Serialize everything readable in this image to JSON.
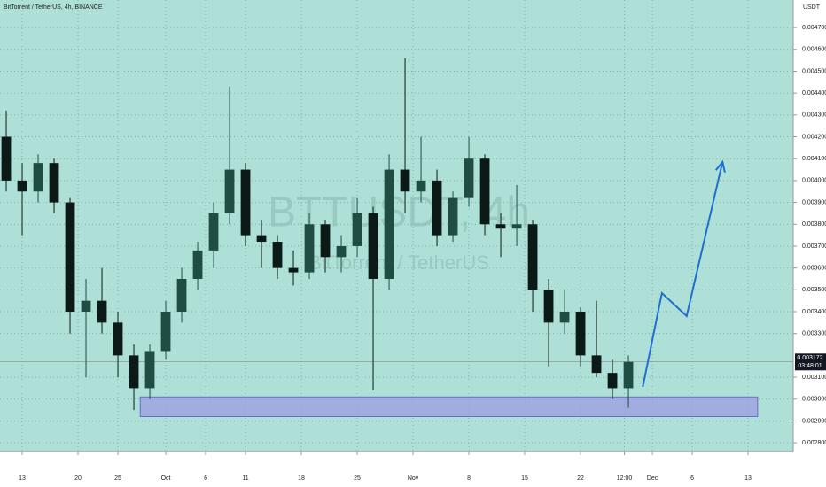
{
  "chart_data": {
    "type": "candlestick",
    "title": "BitTorrent / TetherUS, 4h, BINANCE",
    "watermark": "BTTUSDT, 4h",
    "watermark_sub": "BitTorrent / TetherUS",
    "y_unit": "USDT",
    "x": [
      -2,
      0,
      2,
      4,
      6,
      8,
      10,
      12,
      14,
      16,
      18,
      20,
      22,
      24,
      26,
      28,
      30,
      32,
      34,
      36,
      38,
      40,
      42,
      44,
      46,
      48,
      50,
      52,
      54,
      56,
      58,
      60,
      62,
      64,
      66,
      68,
      70,
      72,
      74,
      76
    ],
    "open": [
      0.0042,
      0.004,
      0.00395,
      0.00408,
      0.0039,
      0.0034,
      0.00345,
      0.00335,
      0.0032,
      0.00305,
      0.00322,
      0.0034,
      0.00355,
      0.00368,
      0.00385,
      0.00405,
      0.00375,
      0.00372,
      0.0036,
      0.00358,
      0.0038,
      0.00365,
      0.0037,
      0.00385,
      0.00355,
      0.00405,
      0.00395,
      0.004,
      0.00375,
      0.00392,
      0.0041,
      0.0038,
      0.00378,
      0.0038,
      0.0035,
      0.00335,
      0.0034,
      0.0032,
      0.00312,
      0.00305
    ],
    "high": [
      0.00432,
      0.00408,
      0.00412,
      0.0041,
      0.00392,
      0.00355,
      0.0036,
      0.0034,
      0.00325,
      0.00325,
      0.00345,
      0.0036,
      0.00372,
      0.0039,
      0.00443,
      0.00408,
      0.00382,
      0.00375,
      0.00368,
      0.00385,
      0.00382,
      0.00375,
      0.00392,
      0.00388,
      0.00412,
      0.00456,
      0.0042,
      0.00405,
      0.00395,
      0.0042,
      0.00412,
      0.00385,
      0.00398,
      0.00382,
      0.00355,
      0.0035,
      0.00342,
      0.00345,
      0.00318,
      0.0032
    ],
    "low": [
      0.00395,
      0.00375,
      0.0039,
      0.00385,
      0.0033,
      0.0031,
      0.0033,
      0.0031,
      0.00295,
      0.003,
      0.00318,
      0.00335,
      0.0035,
      0.0036,
      0.0038,
      0.0037,
      0.0036,
      0.00355,
      0.00352,
      0.00355,
      0.00358,
      0.00358,
      0.00365,
      0.00304,
      0.0035,
      0.00385,
      0.0039,
      0.0037,
      0.00372,
      0.00388,
      0.00375,
      0.00365,
      0.0037,
      0.0034,
      0.00315,
      0.0033,
      0.00315,
      0.0031,
      0.003,
      0.00296
    ],
    "close": [
      0.004,
      0.00395,
      0.00408,
      0.0039,
      0.0034,
      0.00345,
      0.00335,
      0.0032,
      0.00305,
      0.00322,
      0.0034,
      0.00355,
      0.00368,
      0.00385,
      0.00405,
      0.00375,
      0.00372,
      0.0036,
      0.00358,
      0.0038,
      0.00365,
      0.0037,
      0.00385,
      0.00355,
      0.00405,
      0.00395,
      0.004,
      0.00375,
      0.00392,
      0.0041,
      0.0038,
      0.00378,
      0.0038,
      0.0035,
      0.00335,
      0.0034,
      0.0032,
      0.00312,
      0.00305,
      0.00317
    ],
    "up_color": "#1f4d44",
    "down_color": "#0b1a17",
    "xlim": [
      -2.78,
      96.66
    ],
    "ylim": [
      0.00276,
      0.004826
    ],
    "xticks": [
      {
        "value": 0,
        "label": "13"
      },
      {
        "value": 7,
        "label": "20"
      },
      {
        "value": 12,
        "label": "25"
      },
      {
        "value": 18,
        "label": "Oct"
      },
      {
        "value": 23,
        "label": "6"
      },
      {
        "value": 28,
        "label": "11"
      },
      {
        "value": 35,
        "label": "18"
      },
      {
        "value": 42,
        "label": "25"
      },
      {
        "value": 49,
        "label": "Nov"
      },
      {
        "value": 56,
        "label": "8"
      },
      {
        "value": 63,
        "label": "15"
      },
      {
        "value": 70,
        "label": "22"
      },
      {
        "value": 75.5,
        "label": "12:00"
      },
      {
        "value": 79,
        "label": "Dec"
      },
      {
        "value": 84,
        "label": "6"
      },
      {
        "value": 91,
        "label": "13"
      }
    ],
    "yticks": [
      {
        "value": 0.0028,
        "label": "0.002800"
      },
      {
        "value": 0.0029,
        "label": "0.002900"
      },
      {
        "value": 0.003,
        "label": "0.003000"
      },
      {
        "value": 0.0031,
        "label": "0.003100"
      },
      {
        "value": 0.0033,
        "label": "0.003300"
      },
      {
        "value": 0.0034,
        "label": "0.003400"
      },
      {
        "value": 0.0035,
        "label": "0.003500"
      },
      {
        "value": 0.0036,
        "label": "0.003600"
      },
      {
        "value": 0.0037,
        "label": "0.003700"
      },
      {
        "value": 0.0038,
        "label": "0.003800"
      },
      {
        "value": 0.0039,
        "label": "0.003900"
      },
      {
        "value": 0.004,
        "label": "0.004000"
      },
      {
        "value": 0.0041,
        "label": "0.004100"
      },
      {
        "value": 0.0042,
        "label": "0.004200"
      },
      {
        "value": 0.0043,
        "label": "0.004300"
      },
      {
        "value": 0.0044,
        "label": "0.004400"
      },
      {
        "value": 0.0045,
        "label": "0.004500"
      },
      {
        "value": 0.0046,
        "label": "0.004600"
      },
      {
        "value": 0.0047,
        "label": "0.004700"
      }
    ],
    "grid": true,
    "last_price": {
      "value": 0.003172,
      "label": "0.003172"
    },
    "countdown": "03:48:01",
    "zone": {
      "x": [
        14.8,
        92.2
      ],
      "y": [
        0.00292,
        0.00301
      ],
      "color": "#9b9ce0"
    },
    "projection": {
      "x": [
        77.8,
        80.2,
        83.3,
        87.8
      ],
      "y": [
        0.003056,
        0.003485,
        0.00338,
        0.004085
      ],
      "color": "#1e6fd0"
    }
  }
}
